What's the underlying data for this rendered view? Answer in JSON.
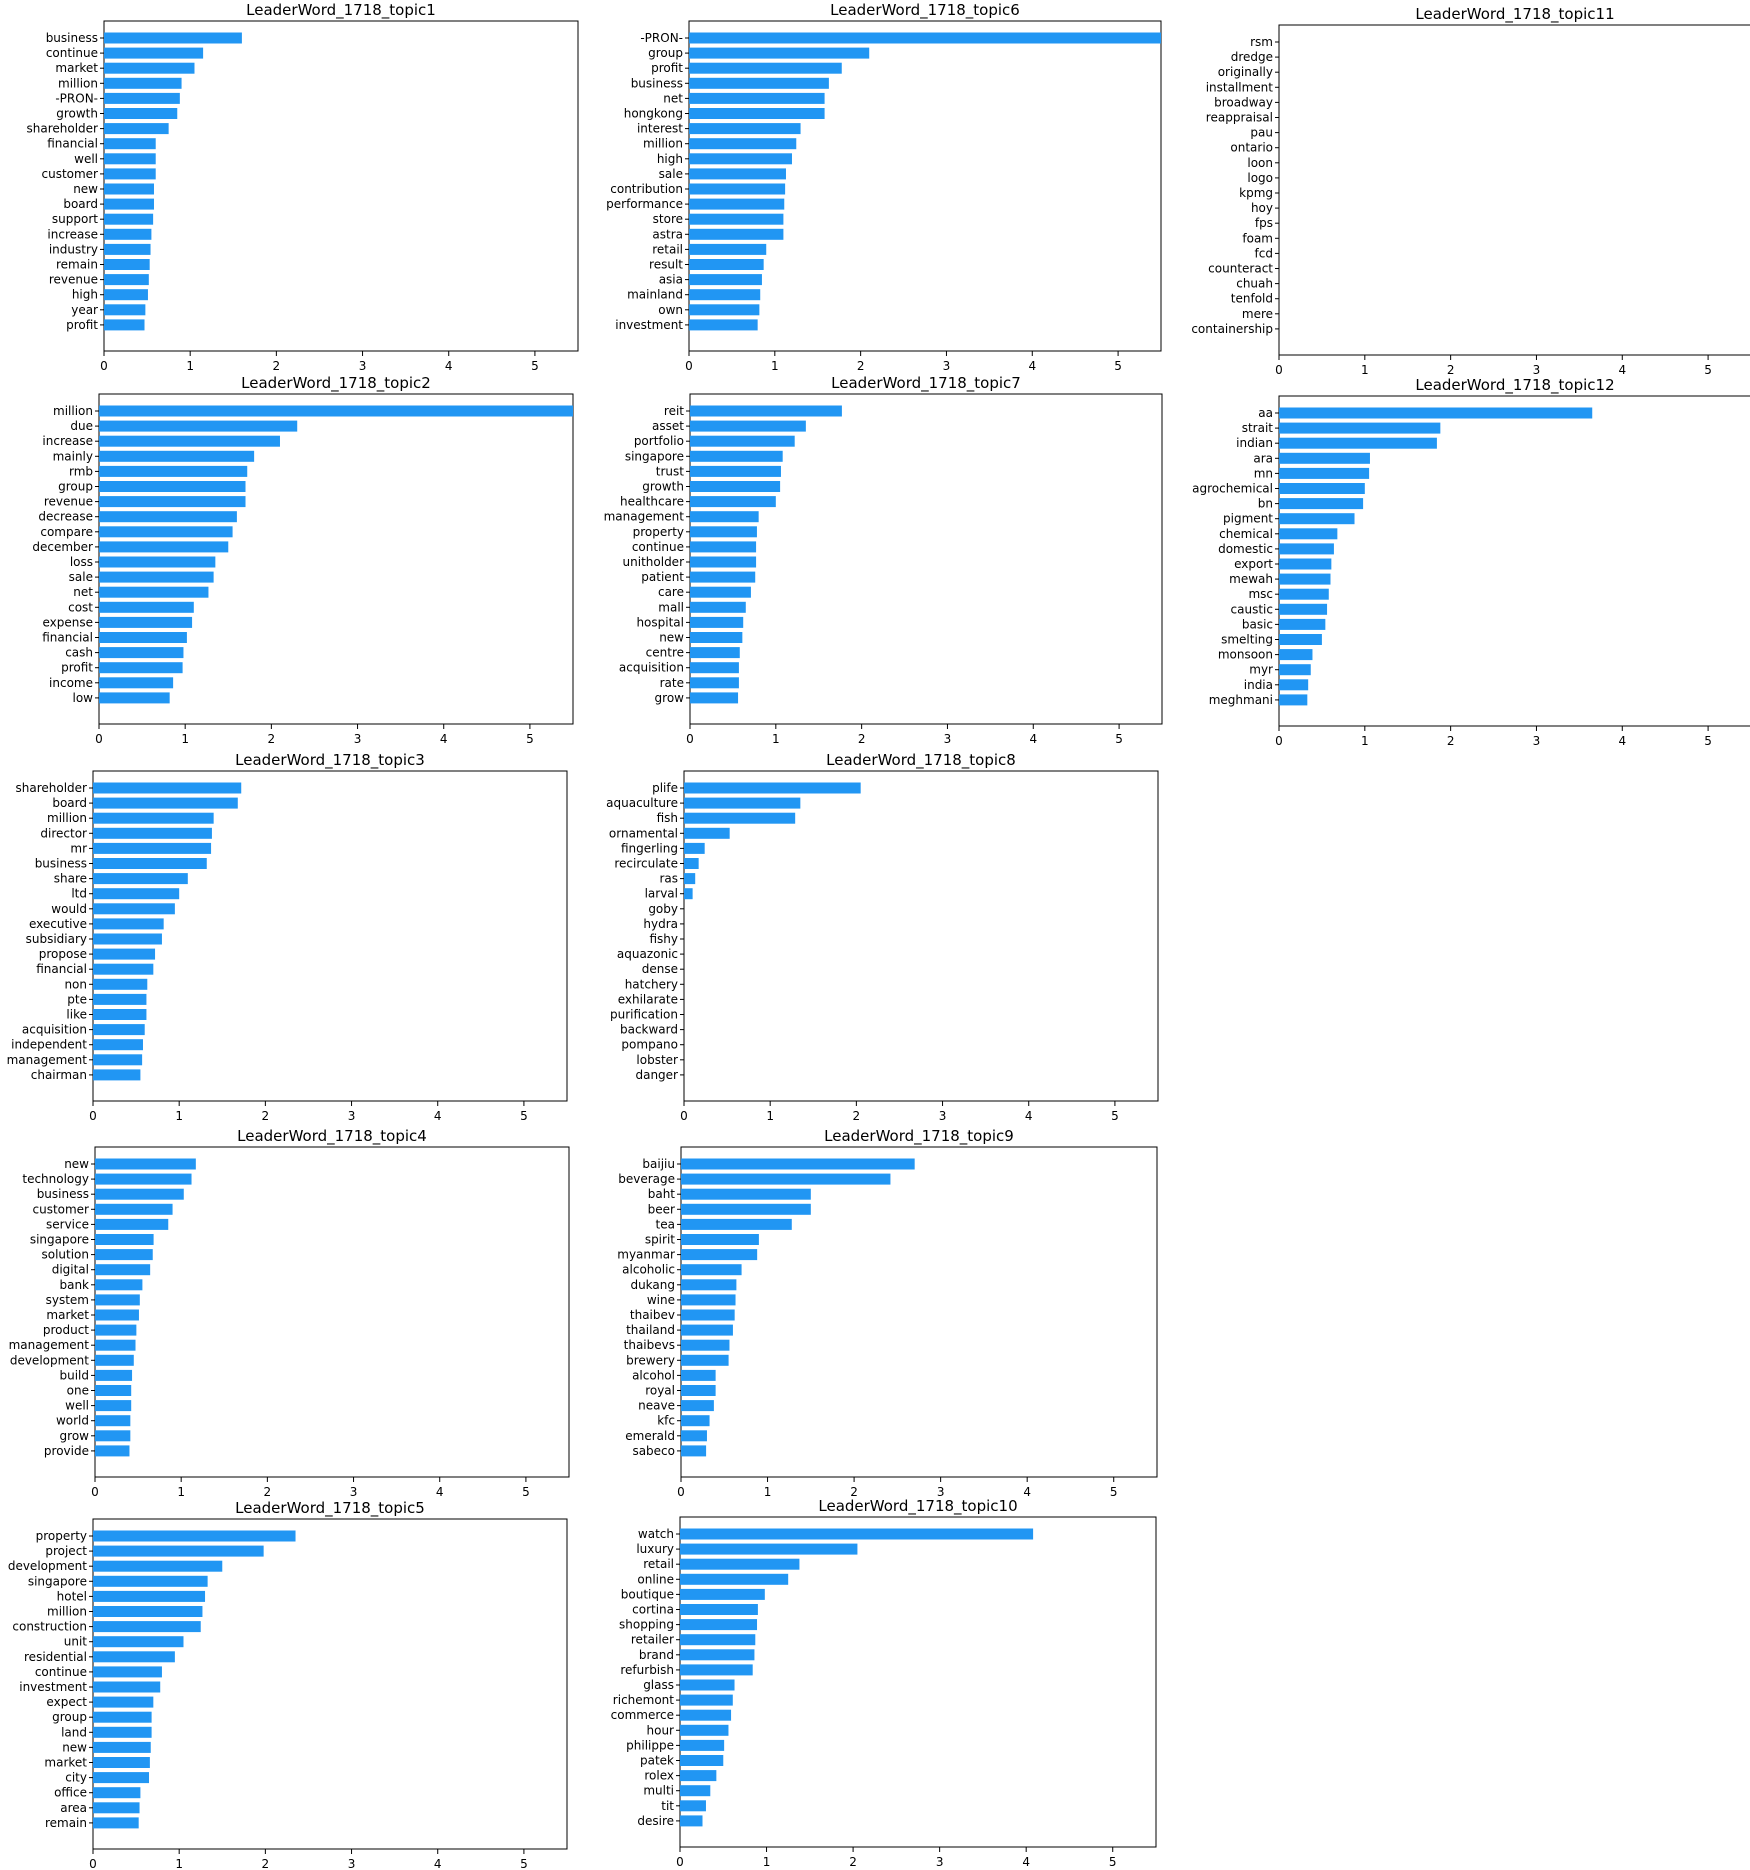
{
  "colors": {
    "bar": "#2196f3",
    "axis": "#000000",
    "background": "#ffffff"
  },
  "chart_data": [
    {
      "type": "bar",
      "orientation": "horizontal",
      "title": "LeaderWord_1718_topic1",
      "xlim": [
        0,
        5.5
      ],
      "xticks": [
        0,
        1,
        2,
        3,
        4,
        5
      ],
      "categories": [
        "business",
        "continue",
        "market",
        "million",
        "-PRON-",
        "growth",
        "shareholder",
        "financial",
        "well",
        "customer",
        "new",
        "board",
        "support",
        "increase",
        "industry",
        "remain",
        "revenue",
        "high",
        "year",
        "profit"
      ],
      "values": [
        1.6,
        1.15,
        1.05,
        0.9,
        0.88,
        0.85,
        0.75,
        0.6,
        0.6,
        0.6,
        0.58,
        0.58,
        0.57,
        0.55,
        0.54,
        0.53,
        0.52,
        0.51,
        0.48,
        0.47
      ]
    },
    {
      "type": "bar",
      "orientation": "horizontal",
      "title": "LeaderWord_1718_topic2",
      "xlim": [
        0,
        5.5
      ],
      "xticks": [
        0,
        1,
        2,
        3,
        4,
        5
      ],
      "categories": [
        "million",
        "due",
        "increase",
        "mainly",
        "rmb",
        "group",
        "revenue",
        "decrease",
        "compare",
        "december",
        "loss",
        "sale",
        "net",
        "cost",
        "expense",
        "financial",
        "cash",
        "profit",
        "income",
        "low"
      ],
      "values": [
        5.5,
        2.3,
        2.1,
        1.8,
        1.72,
        1.7,
        1.7,
        1.6,
        1.55,
        1.5,
        1.35,
        1.33,
        1.27,
        1.1,
        1.08,
        1.02,
        0.98,
        0.97,
        0.86,
        0.82
      ]
    },
    {
      "type": "bar",
      "orientation": "horizontal",
      "title": "LeaderWord_1718_topic3",
      "xlim": [
        0,
        5.5
      ],
      "xticks": [
        0,
        1,
        2,
        3,
        4,
        5
      ],
      "categories": [
        "shareholder",
        "board",
        "million",
        "director",
        "mr",
        "business",
        "share",
        "ltd",
        "would",
        "executive",
        "subsidiary",
        "propose",
        "financial",
        "non",
        "pte",
        "like",
        "acquisition",
        "independent",
        "management",
        "chairman"
      ],
      "values": [
        1.72,
        1.68,
        1.4,
        1.38,
        1.37,
        1.32,
        1.1,
        1.0,
        0.95,
        0.82,
        0.8,
        0.72,
        0.7,
        0.63,
        0.62,
        0.62,
        0.6,
        0.58,
        0.57,
        0.55
      ]
    },
    {
      "type": "bar",
      "orientation": "horizontal",
      "title": "LeaderWord_1718_topic4",
      "xlim": [
        0,
        5.5
      ],
      "xticks": [
        0,
        1,
        2,
        3,
        4,
        5
      ],
      "categories": [
        "new",
        "technology",
        "business",
        "customer",
        "service",
        "singapore",
        "solution",
        "digital",
        "bank",
        "system",
        "market",
        "product",
        "management",
        "development",
        "build",
        "one",
        "well",
        "world",
        "grow",
        "provide"
      ],
      "values": [
        1.17,
        1.12,
        1.03,
        0.9,
        0.85,
        0.68,
        0.67,
        0.64,
        0.55,
        0.52,
        0.51,
        0.48,
        0.47,
        0.45,
        0.43,
        0.42,
        0.42,
        0.41,
        0.41,
        0.4
      ]
    },
    {
      "type": "bar",
      "orientation": "horizontal",
      "title": "LeaderWord_1718_topic5",
      "xlim": [
        0,
        5.5
      ],
      "xticks": [
        0,
        1,
        2,
        3,
        4,
        5
      ],
      "categories": [
        "property",
        "project",
        "development",
        "singapore",
        "hotel",
        "million",
        "construction",
        "unit",
        "residential",
        "continue",
        "investment",
        "expect",
        "group",
        "land",
        "new",
        "market",
        "city",
        "office",
        "area",
        "remain"
      ],
      "values": [
        2.35,
        1.98,
        1.5,
        1.33,
        1.3,
        1.27,
        1.25,
        1.05,
        0.95,
        0.8,
        0.78,
        0.7,
        0.68,
        0.68,
        0.67,
        0.66,
        0.65,
        0.55,
        0.54,
        0.53
      ]
    },
    {
      "type": "bar",
      "orientation": "horizontal",
      "title": "LeaderWord_1718_topic6",
      "xlim": [
        0,
        5.5
      ],
      "xticks": [
        0,
        1,
        2,
        3,
        4,
        5
      ],
      "categories": [
        "-PRON-",
        "group",
        "profit",
        "business",
        "net",
        "hongkong",
        "interest",
        "million",
        "high",
        "sale",
        "contribution",
        "performance",
        "store",
        "astra",
        "retail",
        "result",
        "asia",
        "mainland",
        "own",
        "investment"
      ],
      "values": [
        5.5,
        2.1,
        1.78,
        1.63,
        1.58,
        1.58,
        1.3,
        1.25,
        1.2,
        1.13,
        1.12,
        1.11,
        1.1,
        1.1,
        0.9,
        0.87,
        0.85,
        0.83,
        0.82,
        0.8
      ]
    },
    {
      "type": "bar",
      "orientation": "horizontal",
      "title": "LeaderWord_1718_topic7",
      "xlim": [
        0,
        5.5
      ],
      "xticks": [
        0,
        1,
        2,
        3,
        4,
        5
      ],
      "categories": [
        "reit",
        "asset",
        "portfolio",
        "singapore",
        "trust",
        "growth",
        "healthcare",
        "management",
        "property",
        "continue",
        "unitholder",
        "patient",
        "care",
        "mall",
        "hospital",
        "new",
        "centre",
        "acquisition",
        "rate",
        "grow"
      ],
      "values": [
        1.77,
        1.35,
        1.22,
        1.08,
        1.06,
        1.05,
        1.0,
        0.8,
        0.78,
        0.77,
        0.77,
        0.76,
        0.71,
        0.65,
        0.62,
        0.61,
        0.58,
        0.57,
        0.57,
        0.56
      ]
    },
    {
      "type": "bar",
      "orientation": "horizontal",
      "title": "LeaderWord_1718_topic8",
      "xlim": [
        0,
        5.5
      ],
      "xticks": [
        0,
        1,
        2,
        3,
        4,
        5
      ],
      "categories": [
        "plife",
        "aquaculture",
        "fish",
        "ornamental",
        "fingerling",
        "recirculate",
        "ras",
        "larval",
        "goby",
        "hydra",
        "fishy",
        "aquazonic",
        "dense",
        "hatchery",
        "exhilarate",
        "purification",
        "backward",
        "pompano",
        "lobster",
        "danger"
      ],
      "values": [
        2.05,
        1.35,
        1.29,
        0.53,
        0.24,
        0.17,
        0.13,
        0.1,
        0,
        0,
        0,
        0,
        0,
        0,
        0,
        0,
        0,
        0,
        0,
        0
      ]
    },
    {
      "type": "bar",
      "orientation": "horizontal",
      "title": "LeaderWord_1718_topic9",
      "xlim": [
        0,
        5.5
      ],
      "xticks": [
        0,
        1,
        2,
        3,
        4,
        5
      ],
      "categories": [
        "baijiu",
        "beverage",
        "baht",
        "beer",
        "tea",
        "spirit",
        "myanmar",
        "alcoholic",
        "dukang",
        "wine",
        "thaibev",
        "thailand",
        "thaibevs",
        "brewery",
        "alcohol",
        "royal",
        "neave",
        "kfc",
        "emerald",
        "sabeco"
      ],
      "values": [
        2.7,
        2.42,
        1.5,
        1.5,
        1.28,
        0.9,
        0.88,
        0.7,
        0.64,
        0.63,
        0.62,
        0.6,
        0.56,
        0.55,
        0.4,
        0.4,
        0.38,
        0.33,
        0.3,
        0.29
      ]
    },
    {
      "type": "bar",
      "orientation": "horizontal",
      "title": "LeaderWord_1718_topic10",
      "xlim": [
        0,
        5.5
      ],
      "xticks": [
        0,
        1,
        2,
        3,
        4,
        5
      ],
      "categories": [
        "watch",
        "luxury",
        "retail",
        "online",
        "boutique",
        "cortina",
        "shopping",
        "retailer",
        "brand",
        "refurbish",
        "glass",
        "richemont",
        "commerce",
        "hour",
        "philippe",
        "patek",
        "rolex",
        "multi",
        "tit",
        "desire"
      ],
      "values": [
        4.08,
        2.05,
        1.38,
        1.25,
        0.98,
        0.9,
        0.89,
        0.87,
        0.86,
        0.84,
        0.63,
        0.61,
        0.59,
        0.56,
        0.51,
        0.5,
        0.42,
        0.35,
        0.3,
        0.26
      ]
    },
    {
      "type": "bar",
      "orientation": "horizontal",
      "title": "LeaderWord_1718_topic11",
      "xlim": [
        0,
        5.5
      ],
      "xticks": [
        0,
        1,
        2,
        3,
        4,
        5
      ],
      "categories": [
        "rsm",
        "dredge",
        "originally",
        "installment",
        "broadway",
        "reappraisal",
        "pau",
        "ontario",
        "loon",
        "logo",
        "kpmg",
        "hoy",
        "fps",
        "foam",
        "fcd",
        "counteract",
        "chuah",
        "tenfold",
        "mere",
        "containership"
      ],
      "values": [
        0,
        0,
        0,
        0,
        0,
        0,
        0,
        0,
        0,
        0,
        0,
        0,
        0,
        0,
        0,
        0,
        0,
        0,
        0,
        0
      ]
    },
    {
      "type": "bar",
      "orientation": "horizontal",
      "title": "LeaderWord_1718_topic12",
      "xlim": [
        0,
        5.5
      ],
      "xticks": [
        0,
        1,
        2,
        3,
        4,
        5
      ],
      "categories": [
        "aa",
        "strait",
        "indian",
        "ara",
        "mn",
        "agrochemical",
        "bn",
        "pigment",
        "chemical",
        "domestic",
        "export",
        "mewah",
        "msc",
        "caustic",
        "basic",
        "smelting",
        "monsoon",
        "myr",
        "india",
        "meghmani"
      ],
      "values": [
        3.65,
        1.88,
        1.84,
        1.06,
        1.05,
        1.0,
        0.98,
        0.88,
        0.68,
        0.64,
        0.61,
        0.6,
        0.58,
        0.56,
        0.54,
        0.5,
        0.39,
        0.37,
        0.34,
        0.33
      ]
    }
  ]
}
